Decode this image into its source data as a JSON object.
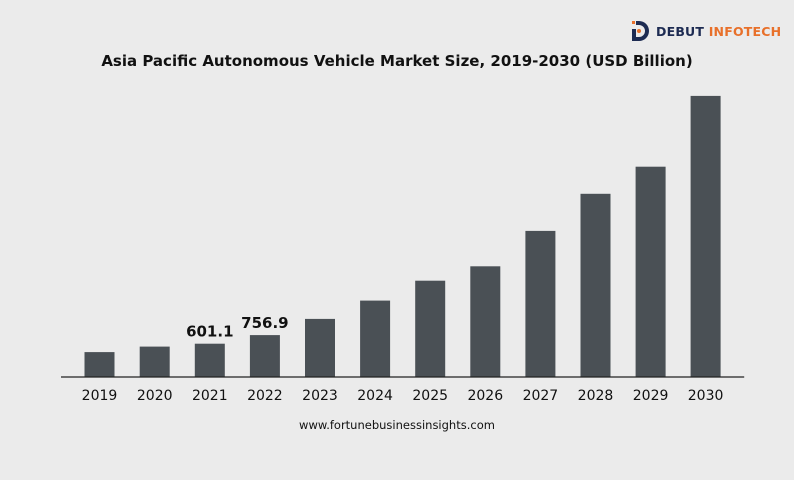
{
  "brand": {
    "name_part1": "DEBUT",
    "name_part2": "INFOTECH",
    "primary_color": "#1d2b52",
    "accent_color": "#e8702a",
    "icon": "debut-infotech-logo-icon"
  },
  "source_text": "www.fortunebusinessinsights.com",
  "chart_data": {
    "type": "bar",
    "title": "Asia Pacific Autonomous Vehicle Market Size, 2019-2030 (USD Billion)",
    "xlabel": "",
    "ylabel": "",
    "categories": [
      "2019",
      "2020",
      "2021",
      "2022",
      "2023",
      "2024",
      "2025",
      "2026",
      "2027",
      "2028",
      "2029",
      "2030"
    ],
    "series": [
      {
        "values": [
          450,
          550,
          601.1,
          756.9,
          1050,
          1380,
          1740,
          2000,
          2640,
          3310,
          3800,
          5080
        ],
        "data_labels": [
          "",
          "",
          "601.1",
          "756.9",
          "",
          "",
          "",
          "",
          "",
          "",
          "",
          ""
        ]
      }
    ],
    "ylim": [
      0,
      5150
    ],
    "grid": false,
    "legend": "none",
    "bar_color": "#4a5055",
    "axis_color": "#222222"
  }
}
